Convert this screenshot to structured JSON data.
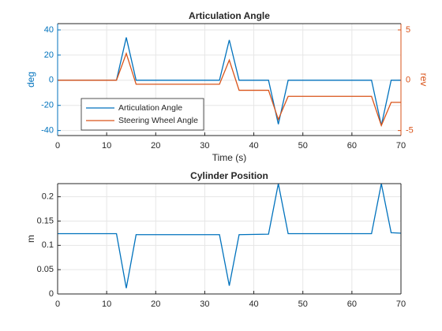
{
  "chart_data": [
    {
      "type": "line",
      "title": "Articulation Angle",
      "xlabel": "Time (s)",
      "ylabel": "deg",
      "y2label": "rev",
      "x": [
        0,
        12,
        14,
        16,
        33,
        35,
        37,
        43,
        45,
        47,
        64,
        66,
        68,
        70
      ],
      "series": [
        {
          "name": "Articulation Angle",
          "color": "#0072bd",
          "values": [
            0,
            0,
            34,
            0,
            0,
            32,
            0,
            0,
            -35,
            0,
            0,
            -36,
            0,
            0
          ]
        },
        {
          "name": "Steering Wheel Angle",
          "color": "#d95319",
          "axis": "y2",
          "values": [
            0,
            0,
            2.66,
            -0.4,
            -0.4,
            2.0,
            -1.0,
            -1.0,
            -3.9,
            -1.6,
            -1.6,
            -4.5,
            -2.2,
            -2.2
          ]
        }
      ],
      "xlim": [
        0,
        70
      ],
      "xticks": [
        0,
        10,
        20,
        30,
        40,
        50,
        60,
        70
      ],
      "ylim": [
        -44,
        45
      ],
      "yticks": [
        -40,
        -20,
        0,
        20,
        40
      ],
      "y2lim": [
        -5.5,
        5.625
      ],
      "y2ticks": [
        -5,
        0,
        5
      ],
      "ycolor": "#0072bd",
      "y2color": "#d95319",
      "grid": true,
      "legend": "lower left"
    },
    {
      "type": "line",
      "title": "Cylinder Position",
      "ylabel": "m",
      "x": [
        0,
        12,
        14,
        16,
        33,
        35,
        37,
        43,
        45,
        47,
        64,
        66,
        68,
        70
      ],
      "series": [
        {
          "color": "#0072bd",
          "values": [
            0.124,
            0.124,
            0.012,
            0.122,
            0.122,
            0.017,
            0.122,
            0.123,
            0.227,
            0.124,
            0.124,
            0.227,
            0.126,
            0.125
          ]
        }
      ],
      "xlim": [
        0,
        70
      ],
      "xticks": [
        0,
        10,
        20,
        30,
        40,
        50,
        60,
        70
      ],
      "ylim": [
        0,
        0.227
      ],
      "yticks": [
        0,
        0.05,
        0.1,
        0.15,
        0.2
      ],
      "ycolor": "#262626",
      "grid": true
    }
  ]
}
